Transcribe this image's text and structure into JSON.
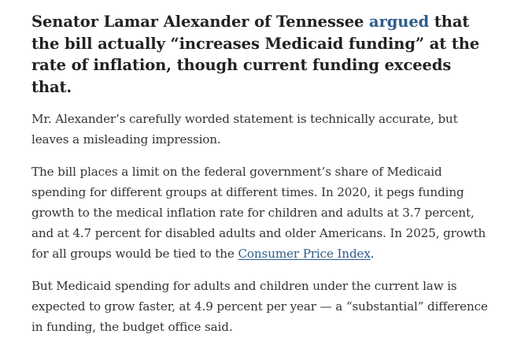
{
  "heading": {
    "before": "Senator Lamar Alexander of Tennessee ",
    "link": "argued",
    "after": " that the bill actually “increases Medicaid funding” at the rate of inflation, though current funding exceeds that."
  },
  "paragraphs": {
    "p1": "Mr. Alexander’s carefully worded statement is technically accurate, but leaves a misleading impression.",
    "p2_before": "The bill places a limit on the federal government’s share of Medicaid spending for different groups at different times. In 2020, it pegs funding growth to the medical inflation rate for children and adults at 3.7 percent, and at 4.7 percent for disabled adults and older Americans. In 2025, growth for all groups would be tied to the ",
    "p2_link": "Consumer Price Index",
    "p2_after": ".",
    "p3": "But Medicaid spending for adults and children under the current law is expected to grow faster, at 4.9 percent per year — a “substantial” difference in funding, the budget office said."
  },
  "colors": {
    "text": "#333333",
    "heading": "#222222",
    "link": "#2f5d8a"
  }
}
